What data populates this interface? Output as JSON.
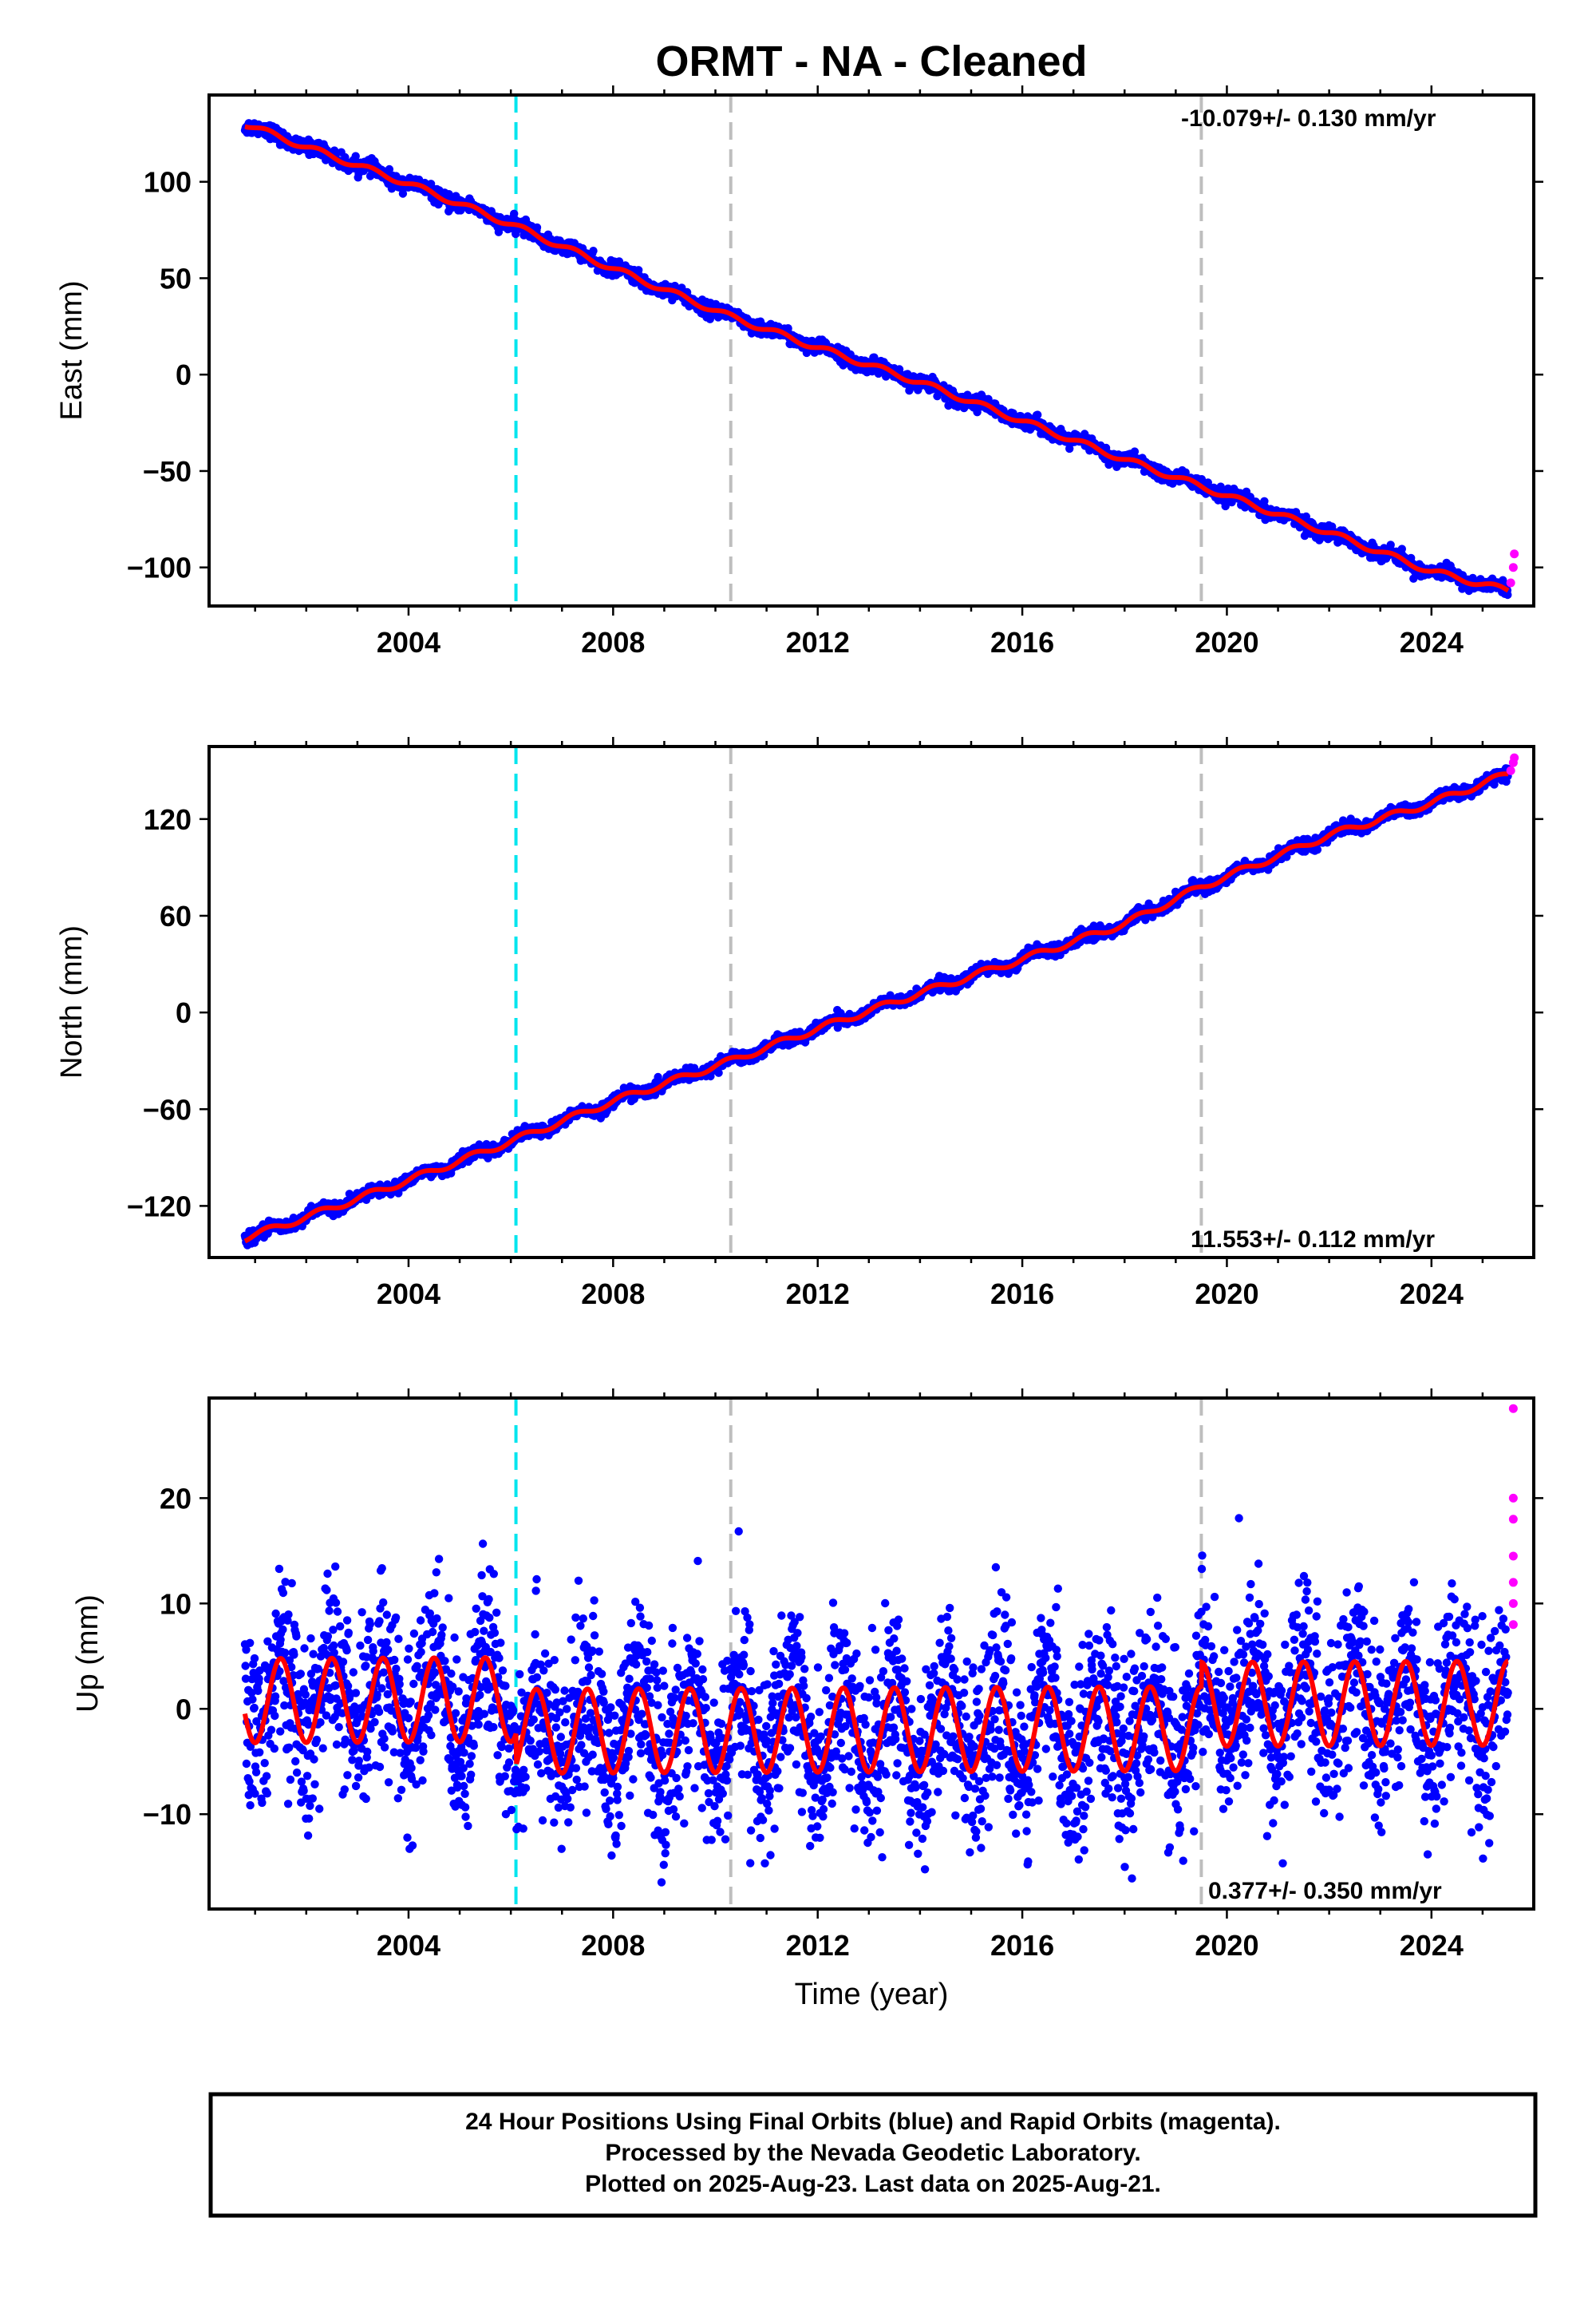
{
  "title": "ORMT  - NA - Cleaned",
  "xlabel": "Time (year)",
  "x_ticks": [
    2004,
    2008,
    2012,
    2016,
    2020,
    2024
  ],
  "x_range": [
    2000.1,
    2026.0
  ],
  "colors": {
    "final_orbits": "#0000ff",
    "rapid_orbits": "#ff00ff",
    "model_fit": "#ff0000",
    "equipment_change_line": "#00e5ee",
    "other_event_line": "#bebebe"
  },
  "event_lines": [
    {
      "year": 2006.1,
      "kind": "equipment_change"
    },
    {
      "year": 2010.3,
      "kind": "other"
    },
    {
      "year": 2019.5,
      "kind": "other"
    }
  ],
  "caption": {
    "line1": "24 Hour Positions Using Final Orbits (blue) and Rapid Orbits (magenta).",
    "line2": "Processed by the Nevada Geodetic Laboratory.",
    "line3": "Plotted on 2025-Aug-23. Last data on 2025-Aug-21."
  },
  "chart_data": [
    {
      "type": "scatter",
      "ylabel": "East (mm)",
      "ylim": [
        -120,
        145
      ],
      "y_ticks": [
        100,
        50,
        0,
        -50,
        -100
      ],
      "rate_text": "-10.079+/- 0.130 mm/yr",
      "rate_position": "top-right",
      "series": [
        {
          "name": "Final Orbits (blue)",
          "x": [
            2000.8,
            2002,
            2004,
            2006,
            2008,
            2010.3,
            2012,
            2014,
            2016,
            2018,
            2019.5,
            2022,
            2024,
            2025.5
          ],
          "values": [
            130,
            118,
            99,
            78,
            55,
            30,
            14,
            -4,
            -24,
            -44,
            -58,
            -82,
            -102,
            -112
          ]
        },
        {
          "name": "Rapid Orbits (magenta)",
          "x": [
            2025.55,
            2025.6,
            2025.62
          ],
          "values": [
            -108,
            -100,
            -93
          ]
        },
        {
          "name": "model",
          "slope_mm_per_yr": -10.079,
          "intercept_at_2000_8": 130,
          "annual_amp": 1.5
        }
      ]
    },
    {
      "type": "scatter",
      "ylabel": "North (mm)",
      "ylim": [
        -152,
        165
      ],
      "y_ticks": [
        120,
        60,
        0,
        -60,
        -120
      ],
      "rate_text": "11.553+/- 0.112 mm/yr",
      "rate_position": "bottom-right",
      "series": [
        {
          "name": "Final Orbits (blue)",
          "x": [
            2000.8,
            2002,
            2004,
            2006,
            2008,
            2010.3,
            2012,
            2014,
            2016,
            2018,
            2019.5,
            2022,
            2024,
            2025.5
          ],
          "values": [
            -140,
            -127,
            -104,
            -80,
            -55,
            -30,
            -10,
            12,
            33,
            55,
            78,
            110,
            130,
            148
          ]
        },
        {
          "name": "Rapid Orbits (magenta)",
          "x": [
            2025.55,
            2025.6,
            2025.62
          ],
          "values": [
            150,
            155,
            158
          ]
        },
        {
          "name": "model",
          "slope_mm_per_yr": 11.553,
          "intercept_at_2000_8": -140,
          "annual_amp": 2.0
        }
      ]
    },
    {
      "type": "scatter",
      "ylabel": "Up (mm)",
      "ylim": [
        -19,
        29.5
      ],
      "y_ticks": [
        20,
        10,
        0,
        -10
      ],
      "rate_text": "0.377+/- 0.350 mm/yr",
      "rate_position": "bottom-right",
      "series": [
        {
          "name": "Final Orbits (blue)",
          "noise_std_mm": 4.2,
          "range_mm": [
            -18,
            23.5
          ]
        },
        {
          "name": "Rapid Orbits (magenta)",
          "x": [
            2025.6,
            2025.6,
            2025.6,
            2025.6,
            2025.6,
            2025.6,
            2025.6
          ],
          "values": [
            28.5,
            20,
            18,
            14.5,
            12,
            10,
            8
          ]
        },
        {
          "name": "model",
          "slope_mm_per_yr": 0.377,
          "annual_amp": 4.0,
          "offsets": [
            {
              "from": 2000.8,
              "mean": 1.0
            },
            {
              "from": 2006.1,
              "mean": -2.0
            },
            {
              "from": 2019.5,
              "mean": 0.3
            }
          ]
        }
      ]
    }
  ]
}
